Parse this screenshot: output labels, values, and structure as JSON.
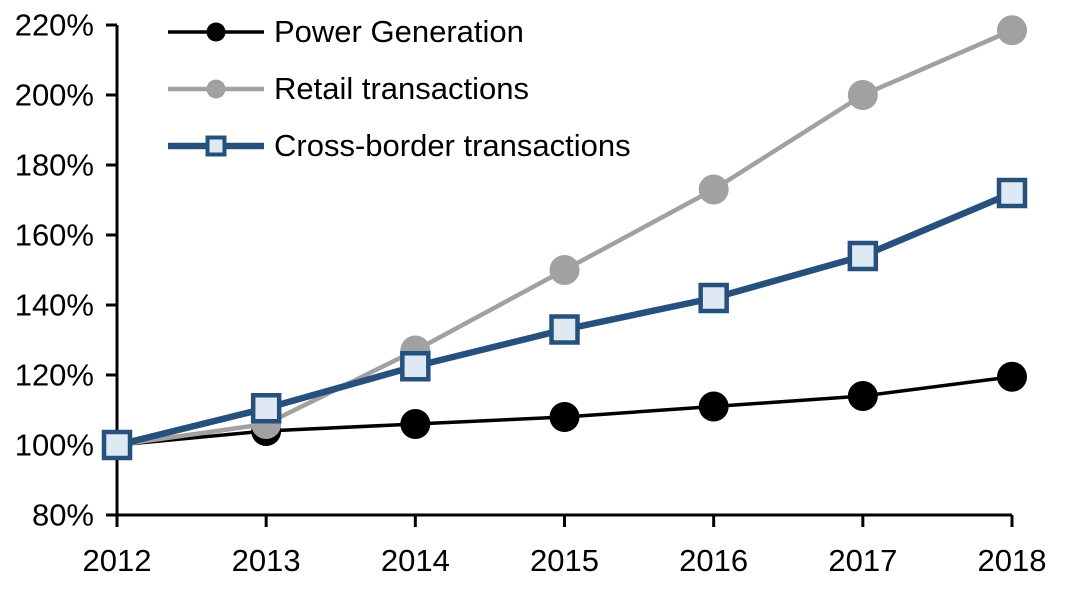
{
  "chart_data": {
    "type": "line",
    "title": "",
    "xlabel": "",
    "ylabel": "",
    "x_categories": [
      "2012",
      "2013",
      "2014",
      "2015",
      "2016",
      "2017",
      "2018"
    ],
    "series": [
      {
        "name": "Power Generation",
        "color": "#000000",
        "marker": "circle",
        "marker_fill": "#000000",
        "line_width": 3.5,
        "values": [
          100,
          104,
          106,
          108,
          111,
          114,
          119.5
        ]
      },
      {
        "name": "Retail transactions",
        "color": "#a1a1a1",
        "marker": "circle",
        "marker_fill": "#a1a1a1",
        "line_width": 4.5,
        "values": [
          100,
          106,
          127,
          150,
          173,
          200,
          218.5
        ]
      },
      {
        "name": "Cross-border transactions",
        "color": "#25517c",
        "marker": "square",
        "marker_fill": "#dee9f4",
        "line_width": 6.5,
        "values": [
          100,
          110.5,
          122.5,
          133,
          142,
          154,
          172
        ]
      }
    ],
    "y_axis": {
      "min": 80,
      "max": 220,
      "step": 20,
      "tick_labels": [
        "80%",
        "100%",
        "120%",
        "140%",
        "160%",
        "180%",
        "200%",
        "220%"
      ]
    },
    "grid": false,
    "legend_position": "top-left-inside"
  }
}
